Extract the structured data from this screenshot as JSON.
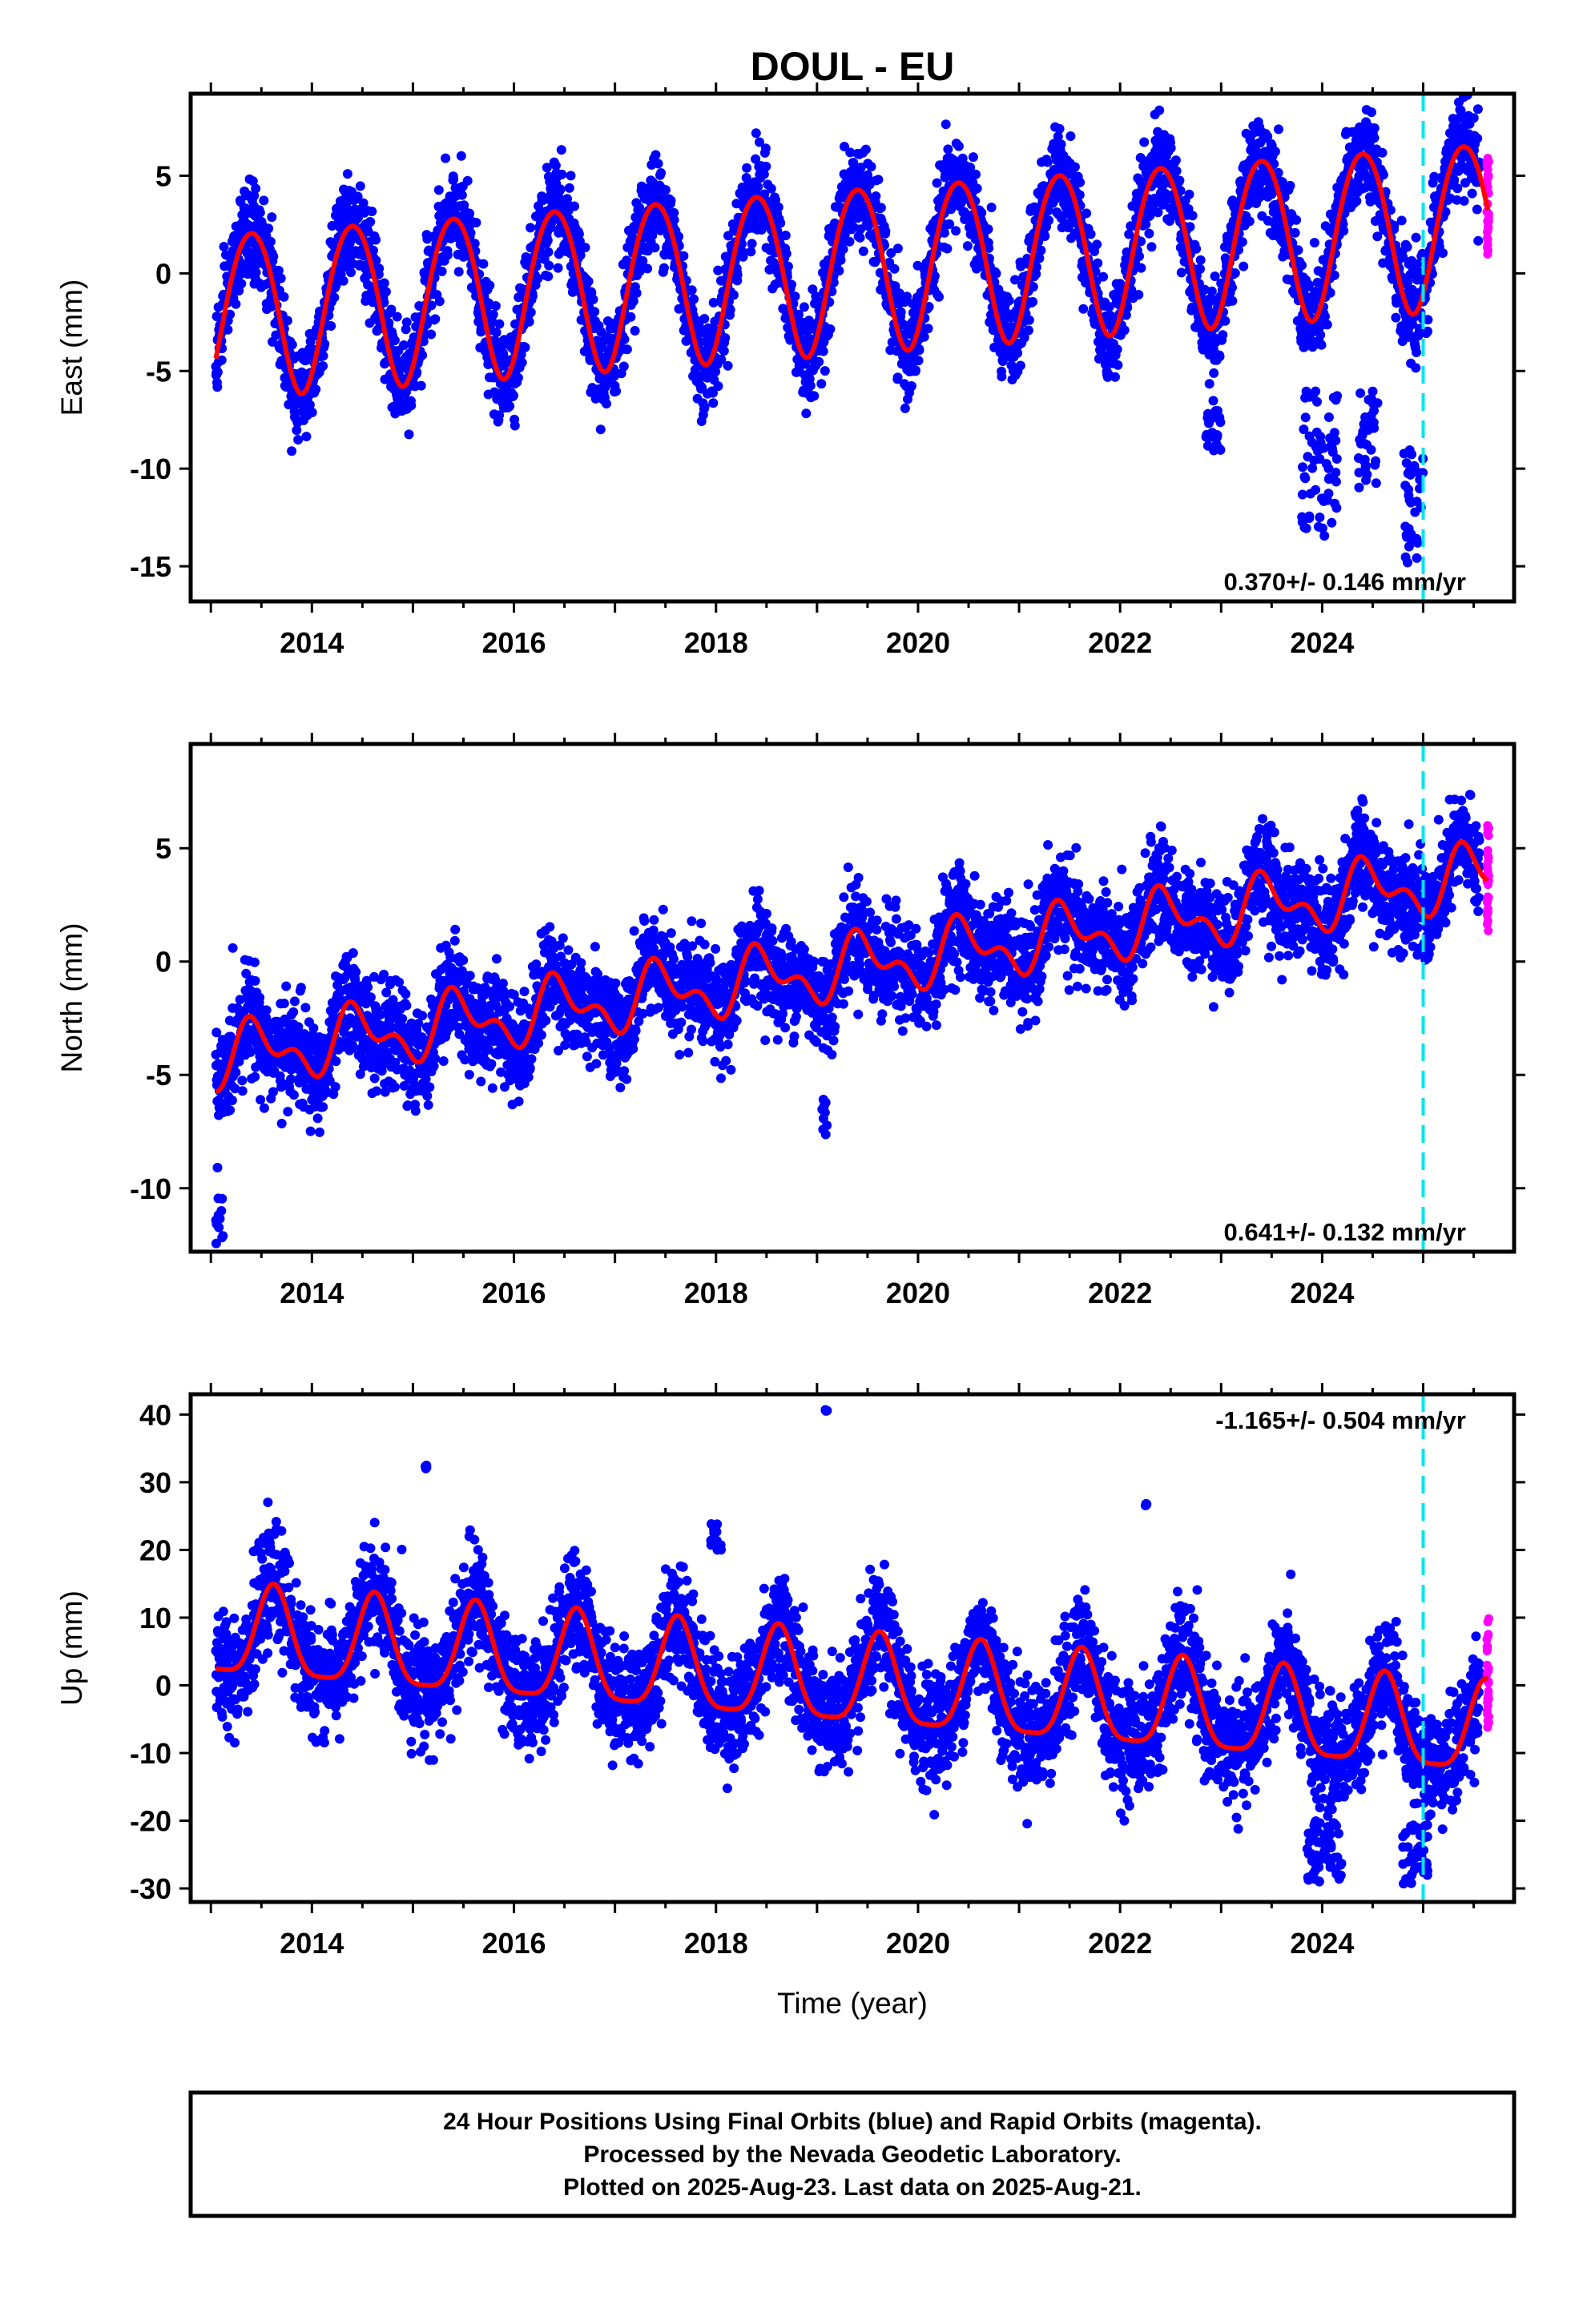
{
  "title": "DOUL - EU",
  "xlabel": "Time (year)",
  "colors": {
    "final": "#0000ff",
    "rapid": "#ff00ff",
    "model": "#ff0000",
    "marker": "#00e5ee"
  },
  "footer": {
    "line1": "24 Hour Positions Using Final Orbits (blue) and Rapid Orbits (magenta).",
    "line2": "Processed by the Nevada Geodetic Laboratory.",
    "line3": "Plotted on 2025-Aug-23. Last data on 2025-Aug-21."
  },
  "chart_data": [
    {
      "type": "scatter",
      "component": "east",
      "ylabel": "East (mm)",
      "rate_text": "0.370+/- 0.146 mm/yr",
      "xlim": [
        2012.8,
        2025.9
      ],
      "ylim": [
        -16.8,
        9.2
      ],
      "xticks": [
        2014,
        2016,
        2018,
        2020,
        2022,
        2024
      ],
      "yticks": [
        -15,
        -10,
        -5,
        0,
        5
      ],
      "data_start": 2013.05,
      "final_end": 2025.0,
      "data_end": 2025.64,
      "marker_x": 2025.0,
      "series": [
        {
          "name": "Final Orbits (blue)",
          "color": "#0000ff"
        },
        {
          "name": "Rapid Orbits (magenta)",
          "color": "#ff00ff"
        }
      ],
      "model": {
        "offset": -2.0,
        "rate": 0.37,
        "annual_amp": 4.2,
        "annual_peak": 0.4,
        "semi_amp": 0.3,
        "semi_peak": 0.15
      },
      "noise": 1.2,
      "outliers": [
        {
          "x": [
            2023.8,
            2024.15
          ],
          "ymin": -13.5,
          "ymax": -6
        },
        {
          "x": [
            2024.35,
            2024.55
          ],
          "ymin": -11,
          "ymax": -6
        },
        {
          "x": [
            2024.8,
            2025.0
          ],
          "ymin": -15,
          "ymax": -9
        },
        {
          "x": [
            2022.85,
            2023.0
          ],
          "ymin": -9.3,
          "ymax": -7
        }
      ]
    },
    {
      "type": "scatter",
      "component": "north",
      "ylabel": "North (mm)",
      "rate_text": "0.641+/- 0.132 mm/yr",
      "xlim": [
        2012.8,
        2025.9
      ],
      "ylim": [
        -12.8,
        9.6
      ],
      "xticks": [
        2014,
        2016,
        2018,
        2020,
        2022,
        2024
      ],
      "yticks": [
        -10,
        -5,
        0,
        5
      ],
      "data_start": 2013.05,
      "final_end": 2025.0,
      "data_end": 2025.64,
      "marker_x": 2025.0,
      "series": [
        {
          "name": "Final Orbits (blue)",
          "color": "#0000ff"
        },
        {
          "name": "Rapid Orbits (magenta)",
          "color": "#ff00ff"
        }
      ],
      "model": {
        "offset": -4.3,
        "rate": 0.641,
        "annual_amp": 1.1,
        "annual_peak": 0.45,
        "semi_amp": 0.7,
        "semi_peak": 0.35
      },
      "noise": 1.1,
      "outliers": [
        {
          "x": [
            2013.05,
            2013.12
          ],
          "ymin": -12.5,
          "ymax": -9
        },
        {
          "x": [
            2019.05,
            2019.1
          ],
          "ymin": -8,
          "ymax": -6
        }
      ]
    },
    {
      "type": "scatter",
      "component": "up",
      "ylabel": "Up (mm)",
      "rate_text": "-1.165+/- 0.504 mm/yr",
      "xlim": [
        2012.8,
        2025.9
      ],
      "ylim": [
        -32,
        43
      ],
      "xticks": [
        2014,
        2016,
        2018,
        2020,
        2022,
        2024
      ],
      "yticks": [
        -30,
        -20,
        -10,
        0,
        10,
        20,
        30,
        40
      ],
      "data_start": 2013.05,
      "final_end": 2025.0,
      "data_end": 2025.64,
      "marker_x": 2025.0,
      "series": [
        {
          "name": "Final Orbits (blue)",
          "color": "#0000ff"
        },
        {
          "name": "Rapid Orbits (magenta)",
          "color": "#ff00ff"
        }
      ],
      "model": {
        "offset": 7.5,
        "rate": -1.165,
        "annual_amp": 6.6,
        "annual_peak": 0.62,
        "semi_amp": 1.6,
        "semi_peak": 0.12
      },
      "noise": 4.0,
      "outliers": [
        {
          "x": [
            2019.08,
            2019.1
          ],
          "ymin": 40.5,
          "ymax": 41
        },
        {
          "x": [
            2015.12,
            2015.14
          ],
          "ymin": 32,
          "ymax": 32.5
        },
        {
          "x": [
            2022.25,
            2022.27
          ],
          "ymin": 26.5,
          "ymax": 27
        },
        {
          "x": [
            2023.85,
            2024.2
          ],
          "ymin": -29,
          "ymax": -20
        },
        {
          "x": [
            2024.8,
            2025.05
          ],
          "ymin": -30,
          "ymax": -20
        },
        {
          "x": [
            2017.95,
            2018.05
          ],
          "ymin": 20,
          "ymax": 24
        }
      ]
    }
  ]
}
